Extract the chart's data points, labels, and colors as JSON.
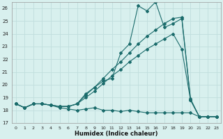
{
  "xlabel": "Humidex (Indice chaleur)",
  "background_color": "#d8f0ee",
  "grid_color": "#c0dedd",
  "line_color": "#1a6b6b",
  "xlim": [
    -0.5,
    23.5
  ],
  "ylim": [
    17,
    26.5
  ],
  "yticks": [
    17,
    18,
    19,
    20,
    21,
    22,
    23,
    24,
    25,
    26
  ],
  "xticks": [
    0,
    1,
    2,
    3,
    4,
    5,
    6,
    7,
    8,
    9,
    10,
    11,
    12,
    13,
    14,
    15,
    16,
    17,
    18,
    19,
    20,
    21,
    22,
    23
  ],
  "series": [
    {
      "x": [
        0,
        1,
        2,
        3,
        4,
        5,
        6,
        7,
        8,
        9,
        10,
        11,
        12,
        13,
        14,
        15,
        16,
        17,
        18,
        19,
        20,
        21,
        22,
        23
      ],
      "y": [
        18.5,
        18.2,
        18.5,
        18.5,
        18.4,
        18.2,
        18.1,
        18.0,
        18.1,
        18.2,
        18.0,
        18.0,
        17.9,
        18.0,
        17.9,
        17.8,
        17.8,
        17.8,
        17.8,
        17.8,
        17.8,
        17.5,
        17.5,
        17.5
      ]
    },
    {
      "x": [
        0,
        1,
        2,
        3,
        4,
        5,
        6,
        7,
        8,
        9,
        10,
        11,
        12,
        13,
        14,
        15,
        16,
        17,
        18,
        19,
        20,
        21,
        22,
        23
      ],
      "y": [
        18.5,
        18.2,
        18.5,
        18.5,
        18.4,
        18.3,
        18.3,
        18.5,
        19.3,
        19.8,
        20.3,
        20.5,
        22.5,
        23.2,
        26.2,
        25.8,
        26.5,
        24.5,
        24.8,
        25.2,
        18.8,
        17.5,
        17.5,
        17.5
      ]
    },
    {
      "x": [
        0,
        1,
        2,
        3,
        4,
        5,
        6,
        7,
        8,
        9,
        10,
        11,
        12,
        13,
        14,
        15,
        16,
        17,
        18,
        19,
        20,
        21,
        22,
        23
      ],
      "y": [
        18.5,
        18.2,
        18.5,
        18.5,
        18.4,
        18.3,
        18.3,
        18.5,
        19.0,
        19.5,
        20.1,
        20.7,
        21.2,
        21.8,
        22.3,
        22.8,
        23.2,
        23.6,
        24.0,
        22.8,
        18.8,
        17.5,
        17.5,
        17.5
      ]
    },
    {
      "x": [
        0,
        1,
        2,
        3,
        4,
        5,
        6,
        7,
        8,
        9,
        10,
        11,
        12,
        13,
        14,
        15,
        16,
        17,
        18,
        19,
        20,
        21,
        22,
        23
      ],
      "y": [
        18.5,
        18.2,
        18.5,
        18.5,
        18.4,
        18.3,
        18.3,
        18.5,
        19.2,
        19.8,
        20.5,
        21.2,
        21.8,
        22.5,
        23.2,
        23.8,
        24.3,
        24.8,
        25.2,
        25.3,
        18.9,
        17.5,
        17.5,
        17.5
      ]
    }
  ]
}
